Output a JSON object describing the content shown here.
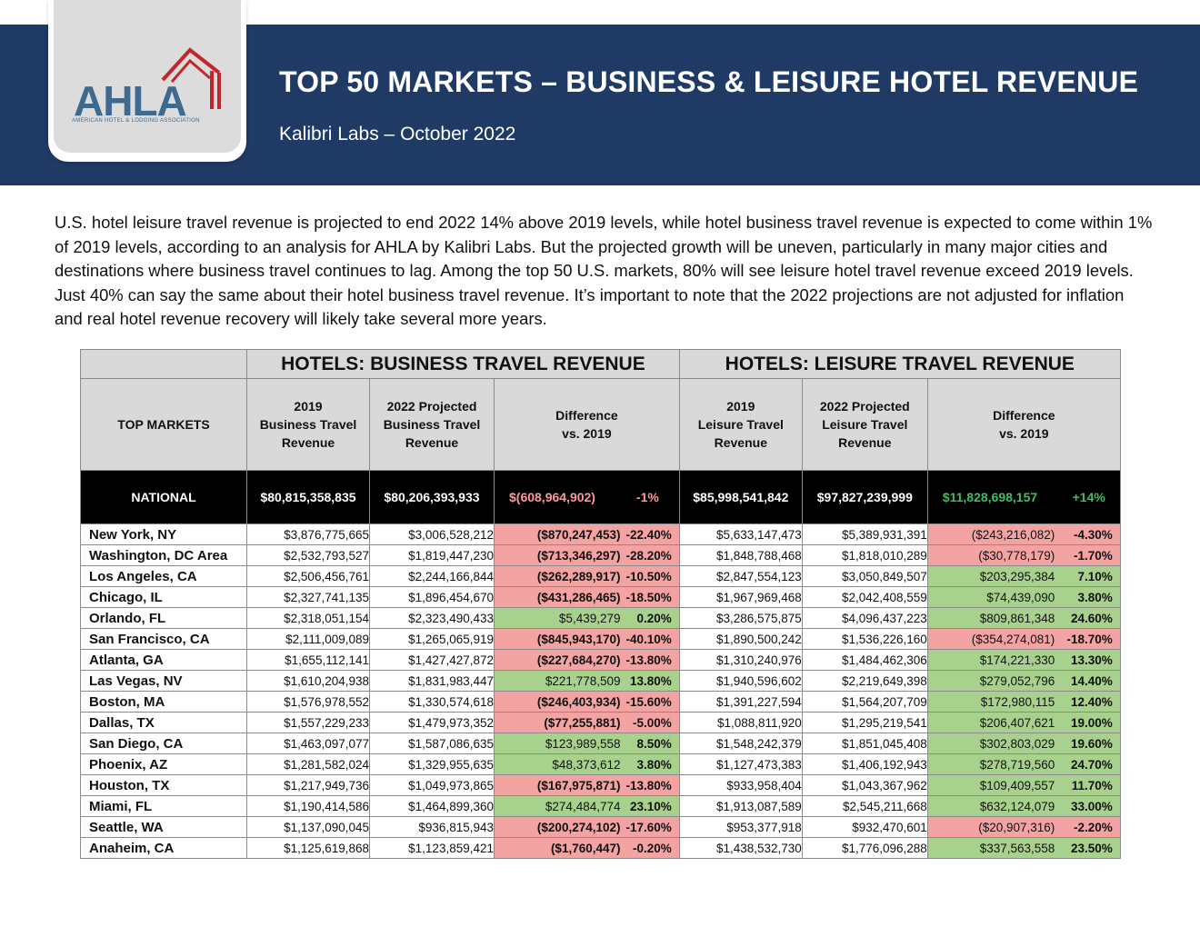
{
  "header": {
    "logo_text": "AHLA",
    "logo_subtext": "AMERICAN HOTEL & LODGING ASSOCIATION",
    "title": "TOP 50 MARKETS – BUSINESS & LEISURE HOTEL REVENUE",
    "subtitle": "Kalibri Labs – October 2022",
    "banner_color": "#1e3a65",
    "logo_color": "#3e6a8f",
    "logo_accent": "#c0272d"
  },
  "intro": "U.S. hotel leisure travel revenue is projected to end 2022 14% above 2019 levels, while hotel business travel revenue is expected to come within 1% of 2019 levels, according to an analysis for AHLA by Kalibri Labs. But the projected growth will be uneven, particularly in many major cities and destinations where business travel continues to lag. Among the top 50 U.S. markets, 80% will see leisure hotel travel revenue exceed 2019 levels. Just 40% can say the same about their hotel business travel revenue. It’s important to note that the 2022 projections are not adjusted for inflation and real hotel revenue recovery will likely take several more years.",
  "table": {
    "group_business": "HOTELS: BUSINESS TRAVEL REVENUE",
    "group_leisure": "HOTELS: LEISURE TRAVEL REVENUE",
    "col_market": "TOP MARKETS",
    "col_b2019": "2019\nBusiness Travel\nRevenue",
    "col_b2022": "2022 Projected\nBusiness Travel\nRevenue",
    "col_bdiff": "Difference\nvs. 2019",
    "col_l2019": "2019\nLeisure Travel\nRevenue",
    "col_l2022": "2022 Projected\nLeisure Travel\nRevenue",
    "col_ldiff": "Difference\nvs. 2019",
    "national": {
      "label": "NATIONAL",
      "b2019": "$80,815,358,835",
      "b2022": "$80,206,393,933",
      "bdiff": "$(608,964,902)",
      "bpct": "-1%",
      "l2019": "$85,998,541,842",
      "l2022": "$97,827,239,999",
      "ldiff": "$11,828,698,157",
      "lpct": "+14%"
    },
    "rows": [
      {
        "market": "New York, NY",
        "b2019": "$3,876,775,665",
        "b2022": "$3,006,528,212",
        "bdiff": "($870,247,453)",
        "bpct": "-22.40%",
        "l2019": "$5,633,147,473",
        "l2022": "$5,389,931,391",
        "ldiff": "($243,216,082)",
        "lpct": "-4.30%"
      },
      {
        "market": "Washington, DC Area",
        "b2019": "$2,532,793,527",
        "b2022": "$1,819,447,230",
        "bdiff": "($713,346,297)",
        "bpct": "-28.20%",
        "l2019": "$1,848,788,468",
        "l2022": "$1,818,010,289",
        "ldiff": "($30,778,179)",
        "lpct": "-1.70%"
      },
      {
        "market": "Los Angeles, CA",
        "b2019": "$2,506,456,761",
        "b2022": "$2,244,166,844",
        "bdiff": "($262,289,917)",
        "bpct": "-10.50%",
        "l2019": "$2,847,554,123",
        "l2022": "$3,050,849,507",
        "ldiff": "$203,295,384",
        "lpct": "7.10%"
      },
      {
        "market": "Chicago, IL",
        "b2019": "$2,327,741,135",
        "b2022": "$1,896,454,670",
        "bdiff": "($431,286,465)",
        "bpct": "-18.50%",
        "l2019": "$1,967,969,468",
        "l2022": "$2,042,408,559",
        "ldiff": "$74,439,090",
        "lpct": "3.80%"
      },
      {
        "market": "Orlando, FL",
        "b2019": "$2,318,051,154",
        "b2022": "$2,323,490,433",
        "bdiff": "$5,439,279",
        "bpct": "0.20%",
        "l2019": "$3,286,575,875",
        "l2022": "$4,096,437,223",
        "ldiff": "$809,861,348",
        "lpct": "24.60%"
      },
      {
        "market": "San Francisco, CA",
        "b2019": "$2,111,009,089",
        "b2022": "$1,265,065,919",
        "bdiff": "($845,943,170)",
        "bpct": "-40.10%",
        "l2019": "$1,890,500,242",
        "l2022": "$1,536,226,160",
        "ldiff": "($354,274,081)",
        "lpct": "-18.70%"
      },
      {
        "market": "Atlanta, GA",
        "b2019": "$1,655,112,141",
        "b2022": "$1,427,427,872",
        "bdiff": "($227,684,270)",
        "bpct": "-13.80%",
        "l2019": "$1,310,240,976",
        "l2022": "$1,484,462,306",
        "ldiff": "$174,221,330",
        "lpct": "13.30%"
      },
      {
        "market": "Las Vegas, NV",
        "b2019": "$1,610,204,938",
        "b2022": "$1,831,983,447",
        "bdiff": "$221,778,509",
        "bpct": "13.80%",
        "l2019": "$1,940,596,602",
        "l2022": "$2,219,649,398",
        "ldiff": "$279,052,796",
        "lpct": "14.40%"
      },
      {
        "market": "Boston, MA",
        "b2019": "$1,576,978,552",
        "b2022": "$1,330,574,618",
        "bdiff": "($246,403,934)",
        "bpct": "-15.60%",
        "l2019": "$1,391,227,594",
        "l2022": "$1,564,207,709",
        "ldiff": "$172,980,115",
        "lpct": "12.40%"
      },
      {
        "market": "Dallas, TX",
        "b2019": "$1,557,229,233",
        "b2022": "$1,479,973,352",
        "bdiff": "($77,255,881)",
        "bpct": "-5.00%",
        "l2019": "$1,088,811,920",
        "l2022": "$1,295,219,541",
        "ldiff": "$206,407,621",
        "lpct": "19.00%"
      },
      {
        "market": "San Diego, CA",
        "b2019": "$1,463,097,077",
        "b2022": "$1,587,086,635",
        "bdiff": "$123,989,558",
        "bpct": "8.50%",
        "l2019": "$1,548,242,379",
        "l2022": "$1,851,045,408",
        "ldiff": "$302,803,029",
        "lpct": "19.60%"
      },
      {
        "market": "Phoenix, AZ",
        "b2019": "$1,281,582,024",
        "b2022": "$1,329,955,635",
        "bdiff": "$48,373,612",
        "bpct": "3.80%",
        "l2019": "$1,127,473,383",
        "l2022": "$1,406,192,943",
        "ldiff": "$278,719,560",
        "lpct": "24.70%"
      },
      {
        "market": "Houston, TX",
        "b2019": "$1,217,949,736",
        "b2022": "$1,049,973,865",
        "bdiff": "($167,975,871)",
        "bpct": "-13.80%",
        "l2019": "$933,958,404",
        "l2022": "$1,043,367,962",
        "ldiff": "$109,409,557",
        "lpct": "11.70%"
      },
      {
        "market": "Miami, FL",
        "b2019": "$1,190,414,586",
        "b2022": "$1,464,899,360",
        "bdiff": "$274,484,774",
        "bpct": "23.10%",
        "l2019": "$1,913,087,589",
        "l2022": "$2,545,211,668",
        "ldiff": "$632,124,079",
        "lpct": "33.00%"
      },
      {
        "market": "Seattle, WA",
        "b2019": "$1,137,090,045",
        "b2022": "$936,815,943",
        "bdiff": "($200,274,102)",
        "bpct": "-17.60%",
        "l2019": "$953,377,918",
        "l2022": "$932,470,601",
        "ldiff": "($20,907,316)",
        "lpct": "-2.20%"
      },
      {
        "market": "Anaheim, CA",
        "b2019": "$1,125,619,868",
        "b2022": "$1,123,859,421",
        "bdiff": "($1,760,447)",
        "bpct": "-0.20%",
        "l2019": "$1,438,532,730",
        "l2022": "$1,776,096,288",
        "ldiff": "$337,563,558",
        "lpct": "23.50%"
      }
    ],
    "colors": {
      "negative_fill": "#f4a3a3",
      "positive_fill": "#a9d18e",
      "header_fill": "#d9d9d9",
      "national_fill": "#000000"
    }
  }
}
